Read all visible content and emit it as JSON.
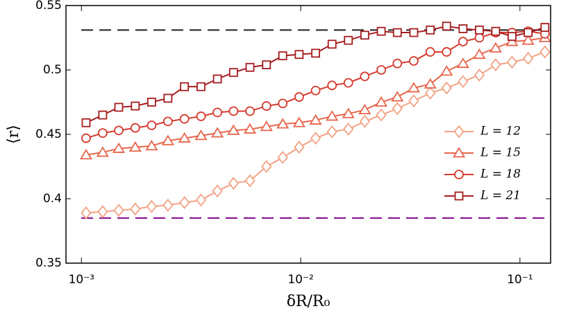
{
  "chart_data": {
    "type": "line",
    "x_label": "δR/R₀",
    "y_label": "⟨r⟩",
    "x_scale": "log",
    "xlim": [
      0.00085,
      0.138
    ],
    "ylim": [
      0.35,
      0.55
    ],
    "xticks": [
      {
        "value": 0.001,
        "label": "10⁻³"
      },
      {
        "value": 0.01,
        "label": "10⁻²"
      },
      {
        "value": 0.1,
        "label": "10⁻¹"
      }
    ],
    "yticks": [
      0.35,
      0.4,
      0.45,
      0.5,
      0.55
    ],
    "legend": "right",
    "x": [
      0.00105,
      0.00125,
      0.00148,
      0.00176,
      0.00209,
      0.00248,
      0.00295,
      0.00351,
      0.00417,
      0.00494,
      0.00587,
      0.00698,
      0.00828,
      0.00984,
      0.0117,
      0.0139,
      0.0165,
      0.0196,
      0.0233,
      0.0276,
      0.0328,
      0.039,
      0.0463,
      0.055,
      0.0653,
      0.0775,
      0.092,
      0.109,
      0.13
    ],
    "series": [
      {
        "name": "L = 12",
        "color": "#f2a283",
        "marker": "diamond",
        "values": [
          0.389,
          0.39,
          0.391,
          0.392,
          0.394,
          0.395,
          0.397,
          0.399,
          0.406,
          0.412,
          0.414,
          0.425,
          0.432,
          0.44,
          0.447,
          0.452,
          0.454,
          0.46,
          0.465,
          0.47,
          0.476,
          0.482,
          0.486,
          0.491,
          0.496,
          0.504,
          0.506,
          0.509,
          0.514
        ]
      },
      {
        "name": "L = 15",
        "color": "#e8654b",
        "marker": "triangle",
        "values": [
          0.434,
          0.436,
          0.439,
          0.44,
          0.441,
          0.445,
          0.447,
          0.449,
          0.451,
          0.453,
          0.454,
          0.456,
          0.458,
          0.459,
          0.461,
          0.464,
          0.466,
          0.469,
          0.475,
          0.479,
          0.486,
          0.489,
          0.499,
          0.505,
          0.512,
          0.517,
          0.522,
          0.523,
          0.525
        ]
      },
      {
        "name": "L = 18",
        "color": "#d63a2e",
        "marker": "circle",
        "values": [
          0.447,
          0.451,
          0.453,
          0.455,
          0.457,
          0.46,
          0.462,
          0.464,
          0.467,
          0.468,
          0.468,
          0.472,
          0.474,
          0.479,
          0.484,
          0.488,
          0.49,
          0.495,
          0.5,
          0.505,
          0.507,
          0.514,
          0.514,
          0.522,
          0.525,
          0.529,
          0.529,
          0.53,
          0.528
        ]
      },
      {
        "name": "L = 21",
        "color": "#a51c1e",
        "marker": "square",
        "values": [
          0.459,
          0.465,
          0.471,
          0.472,
          0.475,
          0.478,
          0.487,
          0.487,
          0.493,
          0.498,
          0.502,
          0.504,
          0.511,
          0.512,
          0.513,
          0.52,
          0.523,
          0.527,
          0.53,
          0.529,
          0.529,
          0.531,
          0.534,
          0.532,
          0.531,
          0.53,
          0.526,
          0.529,
          0.533
        ]
      }
    ],
    "reference_lines": [
      {
        "value": 0.531,
        "color": "#333333"
      },
      {
        "value": 0.385,
        "color": "#8e1a96"
      }
    ]
  }
}
